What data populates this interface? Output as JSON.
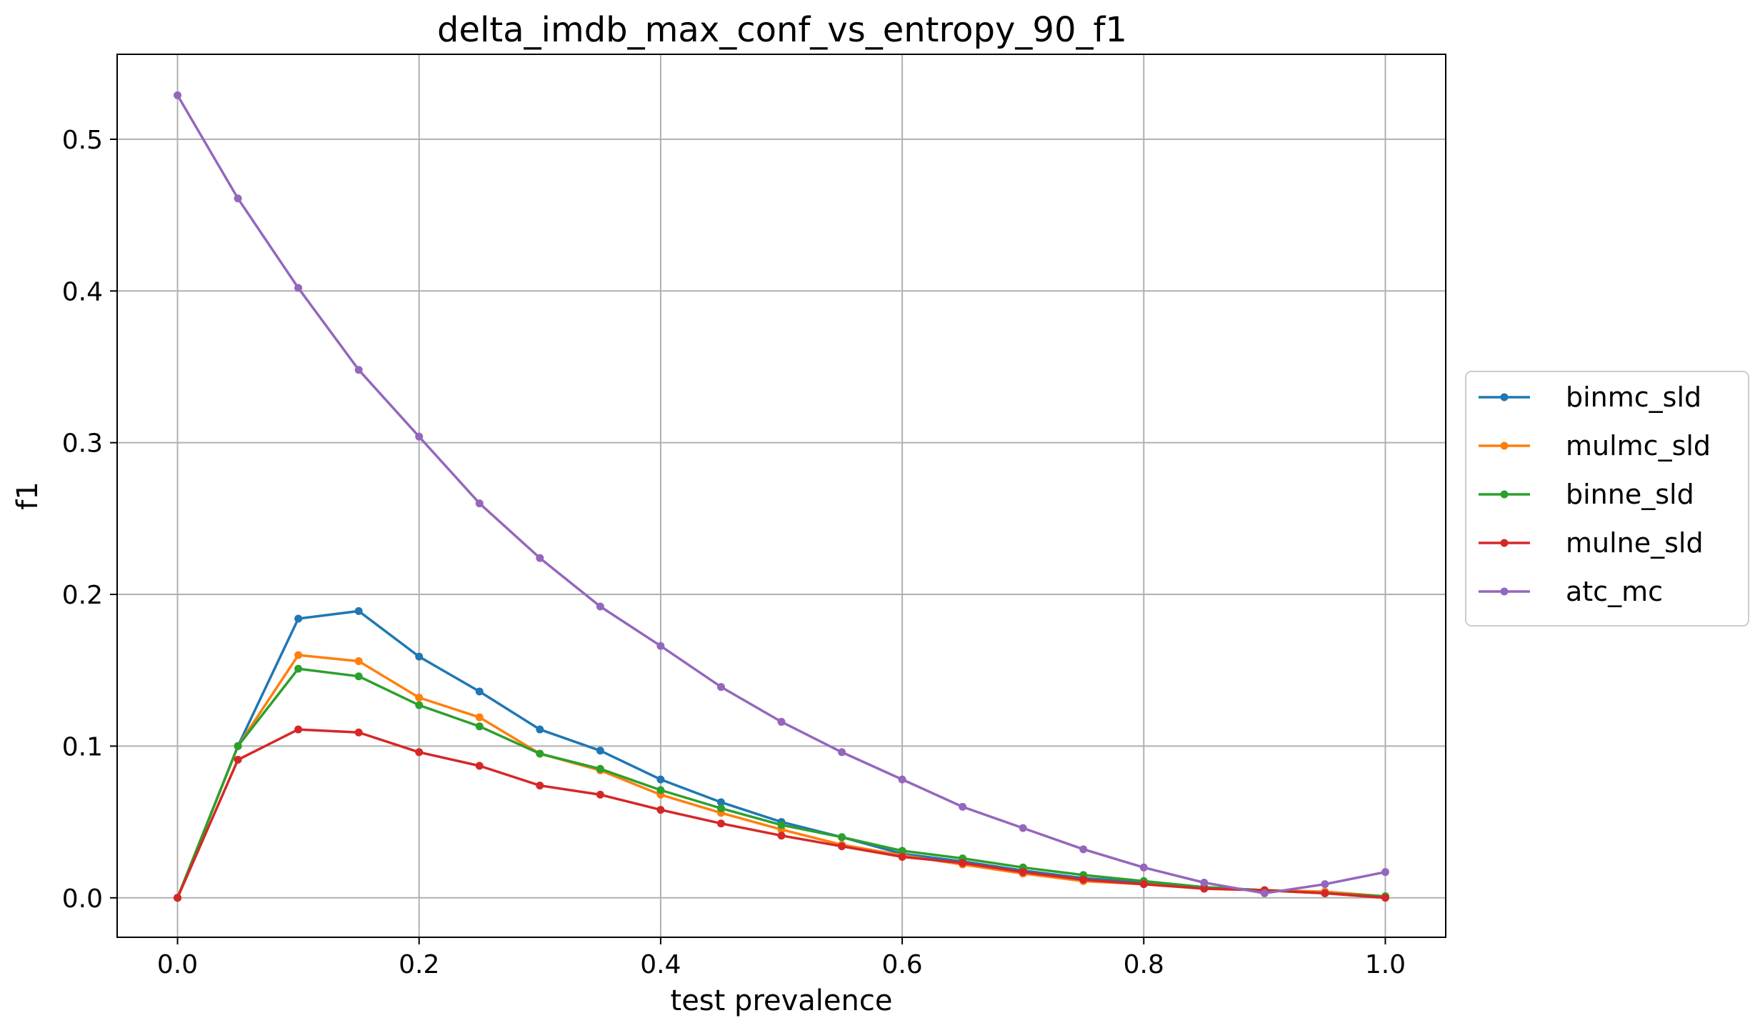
{
  "chart_data": {
    "type": "line",
    "title": "delta_imdb_max_conf_vs_entropy_90_f1",
    "xlabel": "test prevalence",
    "ylabel": "f1",
    "xlim": [
      -0.05,
      1.05
    ],
    "ylim": [
      -0.026,
      0.556
    ],
    "xticks": [
      0.0,
      0.2,
      0.4,
      0.6,
      0.8,
      1.0
    ],
    "yticks": [
      0.0,
      0.1,
      0.2,
      0.3,
      0.4,
      0.5
    ],
    "grid": true,
    "legend_position": "center-right-outside",
    "x": [
      0.0,
      0.05,
      0.1,
      0.15,
      0.2,
      0.25,
      0.3,
      0.35,
      0.4,
      0.45,
      0.5,
      0.55,
      0.6,
      0.65,
      0.7,
      0.75,
      0.8,
      0.85,
      0.9,
      0.95,
      1.0
    ],
    "series": [
      {
        "name": "binmc_sld",
        "color": "#1f77b4",
        "values": [
          0.0,
          0.1,
          0.184,
          0.189,
          0.159,
          0.136,
          0.111,
          0.097,
          0.078,
          0.063,
          0.05,
          0.04,
          0.029,
          0.024,
          0.018,
          0.013,
          0.01,
          0.007,
          0.005,
          0.004,
          0.001
        ]
      },
      {
        "name": "mulmc_sld",
        "color": "#ff7f0e",
        "values": [
          0.0,
          0.1,
          0.16,
          0.156,
          0.132,
          0.119,
          0.095,
          0.084,
          0.068,
          0.056,
          0.045,
          0.035,
          0.028,
          0.022,
          0.016,
          0.011,
          0.009,
          0.007,
          0.005,
          0.004,
          0.001
        ]
      },
      {
        "name": "binne_sld",
        "color": "#2ca02c",
        "values": [
          0.0,
          0.1,
          0.151,
          0.146,
          0.127,
          0.113,
          0.095,
          0.085,
          0.071,
          0.059,
          0.048,
          0.04,
          0.031,
          0.026,
          0.02,
          0.015,
          0.011,
          0.007,
          0.005,
          0.003,
          0.001
        ]
      },
      {
        "name": "mulne_sld",
        "color": "#d62728",
        "values": [
          0.0,
          0.091,
          0.111,
          0.109,
          0.096,
          0.087,
          0.074,
          0.068,
          0.058,
          0.049,
          0.041,
          0.034,
          0.027,
          0.023,
          0.017,
          0.012,
          0.009,
          0.006,
          0.005,
          0.003,
          0.0
        ]
      },
      {
        "name": "atc_mc",
        "color": "#9467bd",
        "values": [
          0.529,
          0.461,
          0.402,
          0.348,
          0.304,
          0.26,
          0.224,
          0.192,
          0.166,
          0.139,
          0.116,
          0.096,
          0.078,
          0.06,
          0.046,
          0.032,
          0.02,
          0.01,
          0.003,
          0.009,
          0.017
        ]
      }
    ]
  }
}
